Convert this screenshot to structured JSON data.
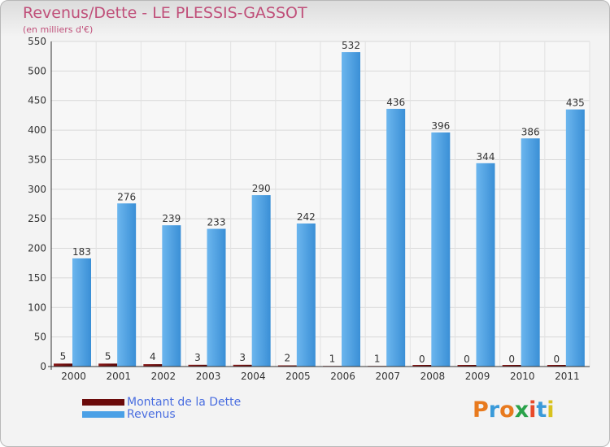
{
  "title": "Revenus/Dette - LE PLESSIS-GASSOT",
  "subtitle": "(en milliers d'€)",
  "chart_data": {
    "type": "bar",
    "title": "Revenus/Dette - LE PLESSIS-GASSOT",
    "ylabel": "(en milliers d'€)",
    "xlabel": "",
    "ylim": [
      0,
      550
    ],
    "ytick_step": 50,
    "grid": true,
    "categories": [
      "2000",
      "2001",
      "2002",
      "2003",
      "2004",
      "2005",
      "2006",
      "2007",
      "2008",
      "2009",
      "2010",
      "2011"
    ],
    "series": [
      {
        "name": "Montant de la Dette",
        "color": "#6b0a0a",
        "values": [
          5,
          5,
          4,
          3,
          3,
          2,
          1,
          1,
          0,
          0,
          0,
          0
        ]
      },
      {
        "name": "Revenus",
        "color": "#4aa0e6",
        "values": [
          183,
          276,
          239,
          233,
          290,
          242,
          532,
          436,
          396,
          344,
          386,
          435
        ]
      }
    ],
    "legend_position": "bottom-left"
  },
  "legend": {
    "items": [
      {
        "label": "Montant de la Dette",
        "color": "#6b0a0a"
      },
      {
        "label": "Revenus",
        "color": "#4aa0e6"
      }
    ]
  },
  "logo": {
    "letters": [
      "P",
      "r",
      "o",
      "x",
      "i",
      "t",
      "i"
    ],
    "colors": [
      "#e87a1e",
      "#3a9ad9",
      "#e87a1e",
      "#2aa24a",
      "#e84a2a",
      "#3a9ad9",
      "#d8c21e"
    ]
  }
}
